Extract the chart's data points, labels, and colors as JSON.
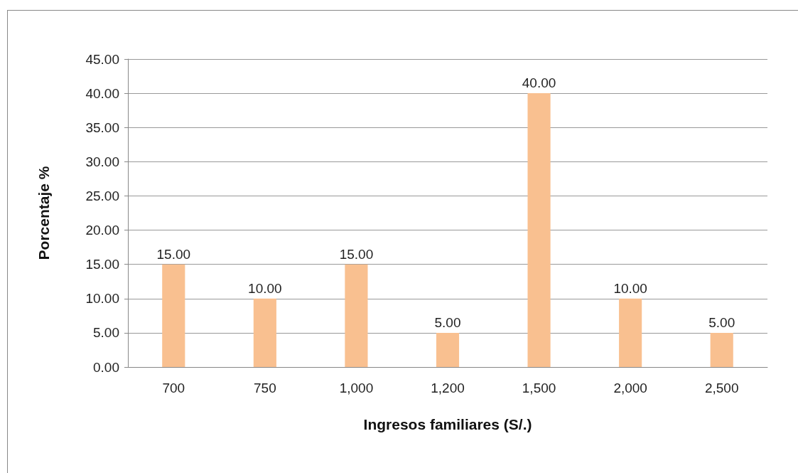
{
  "chart_data": {
    "type": "bar",
    "xlabel": "Ingresos familiares (S/.)",
    "ylabel": "Porcentaje %",
    "categories": [
      "700",
      "750",
      "1,000",
      "1,200",
      "1,500",
      "2,000",
      "2,500"
    ],
    "values": [
      15,
      10,
      15,
      5,
      40,
      10,
      5
    ],
    "value_labels": [
      "15.00",
      "10.00",
      "15.00",
      "5.00",
      "40.00",
      "10.00",
      "5.00"
    ],
    "color": "#f9c090",
    "ylim": [
      0,
      45
    ],
    "yticks": [
      {
        "value": 0,
        "label": "0.00"
      },
      {
        "value": 5,
        "label": "5.00"
      },
      {
        "value": 10,
        "label": "10.00"
      },
      {
        "value": 15,
        "label": "15.00"
      },
      {
        "value": 20,
        "label": "20.00"
      },
      {
        "value": 25,
        "label": "25.00"
      },
      {
        "value": 30,
        "label": "30.00"
      },
      {
        "value": 35,
        "label": "35.00"
      },
      {
        "value": 40,
        "label": "40.00"
      },
      {
        "value": 45,
        "label": "45.00"
      }
    ],
    "grid": true
  }
}
